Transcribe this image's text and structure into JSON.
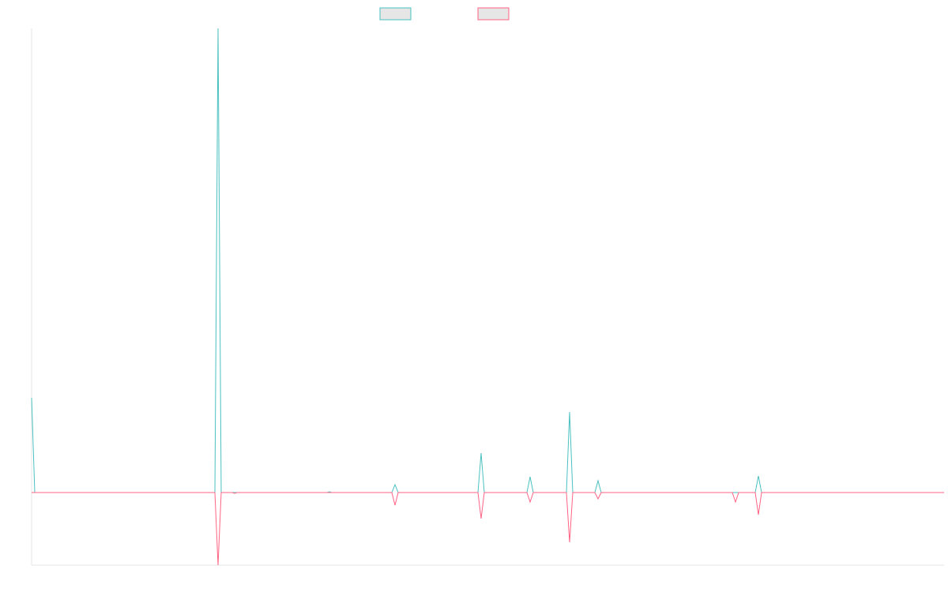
{
  "chart_data": {
    "type": "line",
    "x": [
      0,
      4,
      232,
      236,
      240,
      254,
      257,
      260,
      374,
      377,
      380,
      456,
      460,
      464,
      565,
      569,
      573,
      627,
      631,
      635,
      677,
      681,
      685,
      713,
      717,
      721,
      887,
      891,
      895,
      916,
      920,
      924,
      1155
    ],
    "xlim": [
      0,
      1155
    ],
    "ylim": [
      -92,
      588
    ],
    "series": [
      {
        "color": "#4bc0c0",
        "values": [
          120,
          0,
          0,
          588,
          0,
          0,
          0,
          0,
          0,
          1,
          0,
          0,
          10,
          0,
          0,
          50,
          0,
          0,
          20,
          0,
          0,
          102,
          0,
          0,
          15,
          0,
          0,
          0,
          0,
          0,
          21,
          0,
          0
        ]
      },
      {
        "color": "#ff6384",
        "values": [
          0,
          0,
          0,
          -92,
          0,
          0,
          -1,
          0,
          0,
          0,
          0,
          0,
          -16,
          0,
          0,
          -33,
          0,
          0,
          -12,
          0,
          0,
          -63,
          0,
          0,
          -8,
          0,
          0,
          -12,
          0,
          0,
          -28,
          0,
          0
        ]
      }
    ]
  }
}
